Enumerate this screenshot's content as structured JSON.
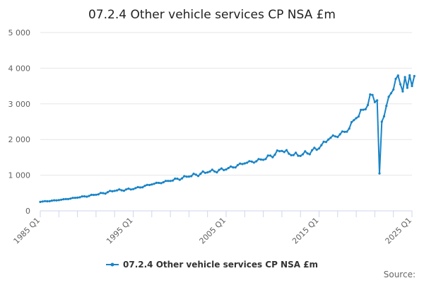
{
  "chart_data": {
    "type": "line",
    "title": "07.2.4 Other vehicle services CP NSA £m",
    "xlabel": "",
    "ylabel": "",
    "ylim": [
      0,
      5000
    ],
    "yticks": [
      0,
      1000,
      2000,
      3000,
      4000,
      5000
    ],
    "ytick_labels": [
      "0",
      "1 000",
      "2 000",
      "3 000",
      "4 000",
      "5 000"
    ],
    "xtick_labels": [
      "1985 Q1",
      "1995 Q1",
      "2005 Q1",
      "2015 Q1",
      "2025 Q1"
    ],
    "grid": true,
    "legend_position": "bottom",
    "color": "#1A84C7",
    "source_label": "Source:",
    "anchors": [
      [
        "1985 Q1",
        250
      ],
      [
        "1987 Q1",
        300
      ],
      [
        "1989 Q1",
        370
      ],
      [
        "1991 Q1",
        450
      ],
      [
        "1993 Q1",
        560
      ],
      [
        "1995 Q1",
        610
      ],
      [
        "1997 Q1",
        740
      ],
      [
        "1999 Q1",
        840
      ],
      [
        "2001 Q1",
        960
      ],
      [
        "2003 Q1",
        1080
      ],
      [
        "2005 Q1",
        1160
      ],
      [
        "2007 Q1",
        1330
      ],
      [
        "2009 Q1",
        1430
      ],
      [
        "2011 Q1",
        1680
      ],
      [
        "2012 Q1",
        1560
      ],
      [
        "2013 Q1",
        1540
      ],
      [
        "2015 Q1",
        1750
      ],
      [
        "2016 Q1",
        2000
      ],
      [
        "2018 Q1",
        2220
      ],
      [
        "2019 Q1",
        2600
      ],
      [
        "2020 Q1",
        2850
      ],
      [
        "2020 Q4",
        3250
      ],
      [
        "2021 Q2",
        3100
      ],
      [
        "2021 Q3",
        1050
      ],
      [
        "2021 Q4",
        2500
      ],
      [
        "2022 Q1",
        2650
      ],
      [
        "2022 Q3",
        3200
      ],
      [
        "2023 Q1",
        3400
      ],
      [
        "2023 Q2",
        3700
      ],
      [
        "2023 Q4",
        3550
      ],
      [
        "2024 Q1",
        3350
      ],
      [
        "2024 Q2",
        3750
      ],
      [
        "2024 Q3",
        3450
      ],
      [
        "2024 Q4",
        3800
      ],
      [
        "2025 Q1",
        3500
      ],
      [
        "2025 Q2",
        3780
      ]
    ],
    "series": [
      {
        "name": "07.2.4 Other vehicle services CP NSA £m",
        "values": []
      }
    ]
  }
}
